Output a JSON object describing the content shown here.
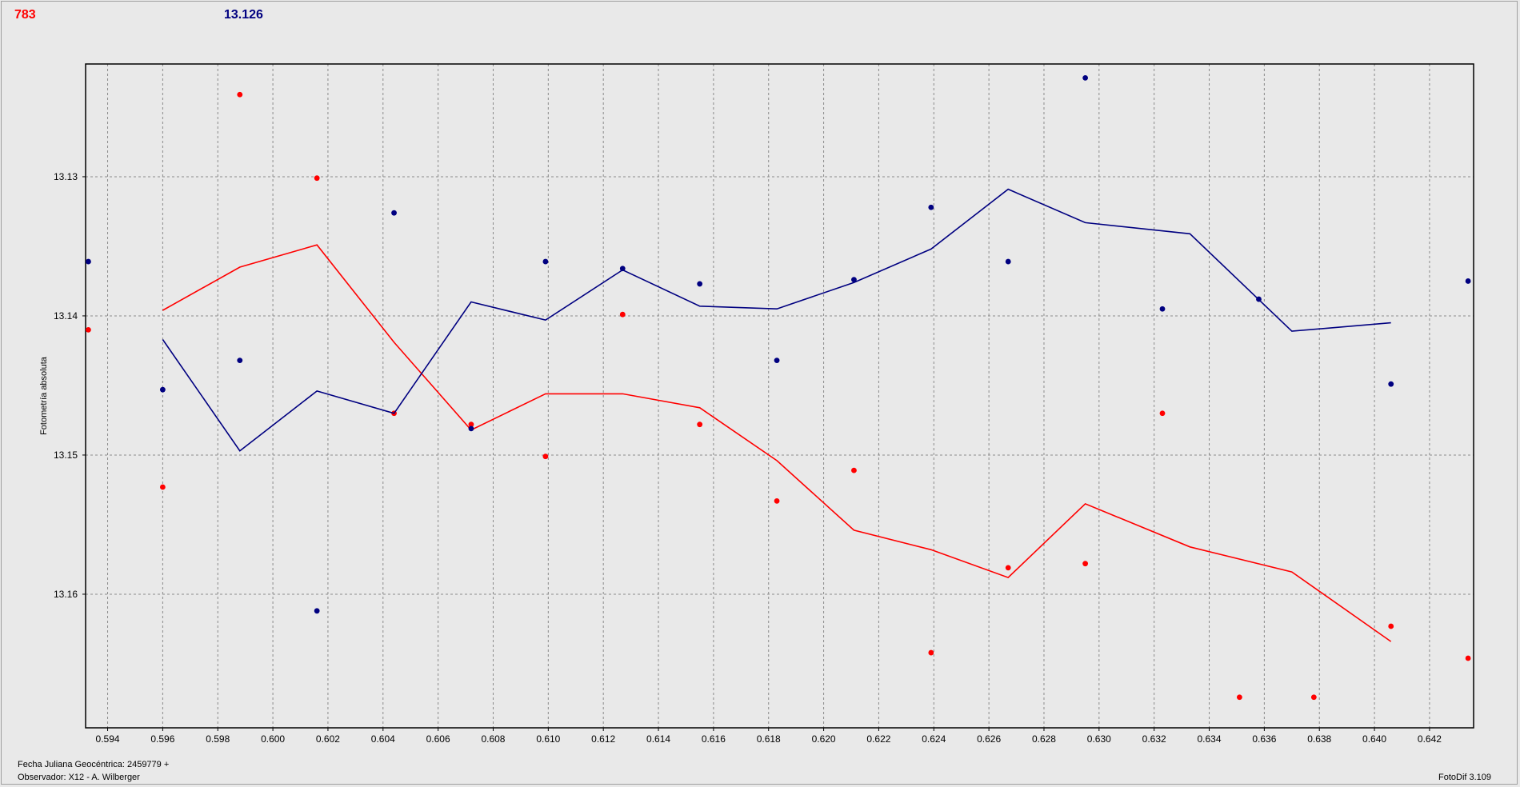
{
  "header": {
    "left_value": "783",
    "left_color": "#ff0000",
    "right_value": "13.126",
    "right_color": "#000080"
  },
  "footer": {
    "line1": "Fecha Juliana Geocéntrica: 2459779 +",
    "line2": "Observador: X12 - A. Wilberger",
    "version": "FotoDif 3.109"
  },
  "chart_data": {
    "type": "scatter",
    "ylabel": "Fotometría absoluta",
    "y_reversed": true,
    "xlim": [
      0.5932,
      0.6436
    ],
    "ylim": [
      13.1219,
      13.1696
    ],
    "grid": true,
    "x_ticks": [
      "0.594",
      "0.596",
      "0.598",
      "0.600",
      "0.602",
      "0.604",
      "0.606",
      "0.608",
      "0.610",
      "0.612",
      "0.614",
      "0.616",
      "0.618",
      "0.620",
      "0.622",
      "0.624",
      "0.626",
      "0.628",
      "0.630",
      "0.632",
      "0.634",
      "0.636",
      "0.638",
      "0.640",
      "0.642"
    ],
    "y_ticks": [
      "13.13",
      "13.14",
      "13.15",
      "13.16"
    ],
    "series": [
      {
        "color": "#ff0000",
        "points": [
          [
            0.5933,
            13.141
          ],
          [
            0.596,
            13.1523
          ],
          [
            0.5988,
            13.1241
          ],
          [
            0.6016,
            13.1301
          ],
          [
            0.6044,
            13.147
          ],
          [
            0.6072,
            13.1478
          ],
          [
            0.6099,
            13.1501
          ],
          [
            0.6127,
            13.1399
          ],
          [
            0.6155,
            13.1478
          ],
          [
            0.6183,
            13.1533
          ],
          [
            0.6211,
            13.1511
          ],
          [
            0.6239,
            13.1642
          ],
          [
            0.6267,
            13.1581
          ],
          [
            0.6295,
            13.1578
          ],
          [
            0.6323,
            13.147
          ],
          [
            0.6351,
            13.1674
          ],
          [
            0.6378,
            13.1674
          ],
          [
            0.6406,
            13.1623
          ],
          [
            0.6434,
            13.1646
          ]
        ],
        "line": [
          [
            0.596,
            13.1396
          ],
          [
            0.5988,
            13.1365
          ],
          [
            0.6016,
            13.1349
          ],
          [
            0.6044,
            13.1419
          ],
          [
            0.6072,
            13.1482
          ],
          [
            0.6099,
            13.1456
          ],
          [
            0.6127,
            13.1456
          ],
          [
            0.6155,
            13.1466
          ],
          [
            0.6183,
            13.1504
          ],
          [
            0.6211,
            13.1554
          ],
          [
            0.6239,
            13.1568
          ],
          [
            0.6267,
            13.1588
          ],
          [
            0.6295,
            13.1535
          ],
          [
            0.6333,
            13.1566
          ],
          [
            0.637,
            13.1584
          ],
          [
            0.6406,
            13.1634
          ]
        ]
      },
      {
        "color": "#000080",
        "points": [
          [
            0.5933,
            13.1361
          ],
          [
            0.596,
            13.1453
          ],
          [
            0.5988,
            13.1432
          ],
          [
            0.6016,
            13.1612
          ],
          [
            0.6044,
            13.1326
          ],
          [
            0.6072,
            13.1481
          ],
          [
            0.6099,
            13.1361
          ],
          [
            0.6127,
            13.1366
          ],
          [
            0.6155,
            13.1377
          ],
          [
            0.6183,
            13.1432
          ],
          [
            0.6211,
            13.1374
          ],
          [
            0.6239,
            13.1322
          ],
          [
            0.6267,
            13.1361
          ],
          [
            0.6295,
            13.1229
          ],
          [
            0.6323,
            13.1395
          ],
          [
            0.6358,
            13.1388
          ],
          [
            0.6406,
            13.1449
          ],
          [
            0.6434,
            13.1375
          ]
        ],
        "line": [
          [
            0.596,
            13.1417
          ],
          [
            0.5988,
            13.1497
          ],
          [
            0.6016,
            13.1454
          ],
          [
            0.6044,
            13.147
          ],
          [
            0.6072,
            13.139
          ],
          [
            0.6099,
            13.1403
          ],
          [
            0.6127,
            13.1367
          ],
          [
            0.6155,
            13.1393
          ],
          [
            0.6183,
            13.1395
          ],
          [
            0.6211,
            13.1376
          ],
          [
            0.6239,
            13.1352
          ],
          [
            0.6267,
            13.1309
          ],
          [
            0.6295,
            13.1333
          ],
          [
            0.6333,
            13.1341
          ],
          [
            0.637,
            13.1411
          ],
          [
            0.6406,
            13.1405
          ]
        ]
      }
    ]
  }
}
